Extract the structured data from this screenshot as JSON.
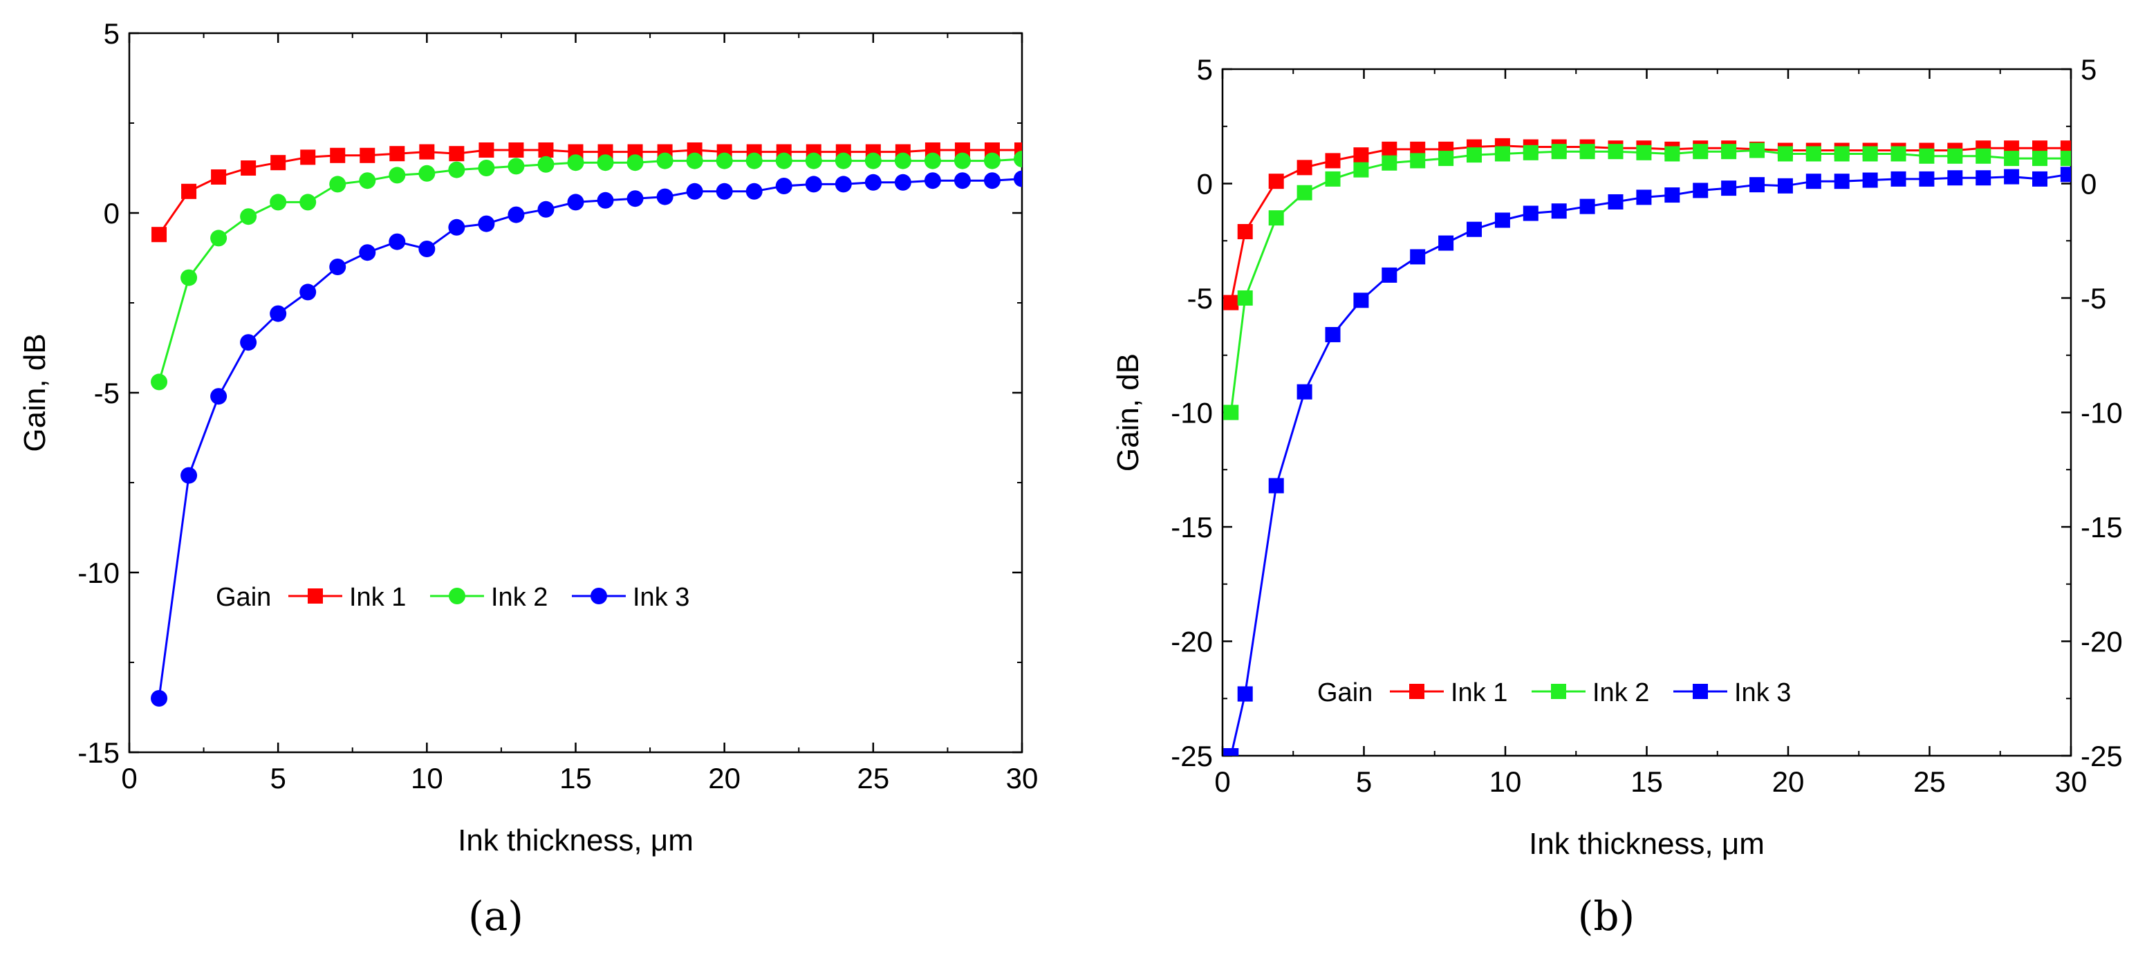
{
  "colors": {
    "ink1": "#ff0000",
    "ink2": "#22ee22",
    "ink3": "#0000ff"
  },
  "chart_data": [
    {
      "type": "line",
      "panel_label": "(a)",
      "xlabel": "Ink thickness, μm",
      "ylabel": "Gain, dB",
      "xlim": [
        0,
        30
      ],
      "ylim": [
        -15,
        5
      ],
      "xticks": [
        "0",
        "5",
        "10",
        "15",
        "20",
        "25",
        "30"
      ],
      "yticks": [
        "-15",
        "-10",
        "-5",
        "0",
        "5"
      ],
      "right_axis_labels": false,
      "legend_title": "Gain",
      "legend_position": "lower-left",
      "marker": "circle",
      "x": [
        1,
        2,
        3,
        4,
        5,
        6,
        7,
        8,
        9,
        10,
        11,
        12,
        13,
        14,
        15,
        16,
        17,
        18,
        19,
        20,
        21,
        22,
        23,
        24,
        25,
        26,
        27,
        28,
        29,
        30
      ],
      "series": [
        {
          "name": "Ink 1",
          "marker": "square",
          "values": [
            -0.6,
            0.6,
            1.0,
            1.25,
            1.4,
            1.55,
            1.6,
            1.6,
            1.65,
            1.7,
            1.65,
            1.75,
            1.75,
            1.75,
            1.7,
            1.7,
            1.7,
            1.7,
            1.75,
            1.7,
            1.7,
            1.7,
            1.7,
            1.7,
            1.7,
            1.7,
            1.75,
            1.75,
            1.75,
            1.75
          ]
        },
        {
          "name": "Ink 2",
          "marker": "circle",
          "values": [
            -4.7,
            -1.8,
            -0.7,
            -0.1,
            0.3,
            0.3,
            0.8,
            0.9,
            1.05,
            1.1,
            1.2,
            1.25,
            1.3,
            1.35,
            1.4,
            1.4,
            1.4,
            1.45,
            1.45,
            1.45,
            1.45,
            1.45,
            1.45,
            1.45,
            1.45,
            1.45,
            1.45,
            1.45,
            1.45,
            1.5
          ]
        },
        {
          "name": "Ink 3",
          "marker": "circle",
          "values": [
            -13.5,
            -7.3,
            -5.1,
            -3.6,
            -2.8,
            -2.2,
            -1.5,
            -1.1,
            -0.8,
            -1.0,
            -0.4,
            -0.3,
            -0.05,
            0.1,
            0.3,
            0.35,
            0.4,
            0.45,
            0.6,
            0.6,
            0.6,
            0.75,
            0.8,
            0.8,
            0.85,
            0.85,
            0.9,
            0.9,
            0.9,
            0.95
          ]
        }
      ]
    },
    {
      "type": "line",
      "panel_label": "(b)",
      "xlabel": "Ink thickness, μm",
      "ylabel": "Gain, dB",
      "xlim": [
        0,
        30
      ],
      "ylim": [
        -25,
        5
      ],
      "xticks": [
        "0",
        "5",
        "10",
        "15",
        "20",
        "25",
        "30"
      ],
      "yticks": [
        "-25",
        "-20",
        "-15",
        "-10",
        "-5",
        "0",
        "5"
      ],
      "right_axis_labels": true,
      "legend_title": "Gain",
      "legend_position": "lower-left",
      "x": [
        0.3,
        0.8,
        1.9,
        2.9,
        3.9,
        4.9,
        5.9,
        6.9,
        7.9,
        8.9,
        9.9,
        10.9,
        11.9,
        12.9,
        13.9,
        14.9,
        15.9,
        16.9,
        17.9,
        18.9,
        19.9,
        20.9,
        21.9,
        22.9,
        23.9,
        24.9,
        25.9,
        26.9,
        27.9,
        28.9,
        29.9
      ],
      "series": [
        {
          "name": "Ink 1",
          "marker": "square",
          "values": [
            -5.2,
            -2.1,
            0.1,
            0.7,
            1.0,
            1.25,
            1.5,
            1.5,
            1.5,
            1.6,
            1.65,
            1.6,
            1.6,
            1.6,
            1.55,
            1.55,
            1.5,
            1.55,
            1.55,
            1.5,
            1.45,
            1.45,
            1.45,
            1.45,
            1.45,
            1.45,
            1.45,
            1.55,
            1.55,
            1.55,
            1.55
          ]
        },
        {
          "name": "Ink 2",
          "marker": "square",
          "values": [
            -10.0,
            -5.0,
            -1.5,
            -0.4,
            0.2,
            0.6,
            0.9,
            1.0,
            1.1,
            1.25,
            1.3,
            1.35,
            1.4,
            1.4,
            1.4,
            1.35,
            1.3,
            1.4,
            1.4,
            1.45,
            1.3,
            1.3,
            1.3,
            1.3,
            1.3,
            1.2,
            1.2,
            1.2,
            1.1,
            1.1,
            1.1
          ]
        },
        {
          "name": "Ink 3",
          "marker": "square",
          "values": [
            -25.0,
            -22.3,
            -13.2,
            -9.1,
            -6.6,
            -5.1,
            -4.0,
            -3.2,
            -2.6,
            -2.0,
            -1.6,
            -1.3,
            -1.2,
            -1.0,
            -0.8,
            -0.6,
            -0.5,
            -0.3,
            -0.2,
            -0.05,
            -0.1,
            0.1,
            0.1,
            0.15,
            0.2,
            0.2,
            0.25,
            0.25,
            0.3,
            0.2,
            0.4
          ]
        }
      ]
    }
  ]
}
